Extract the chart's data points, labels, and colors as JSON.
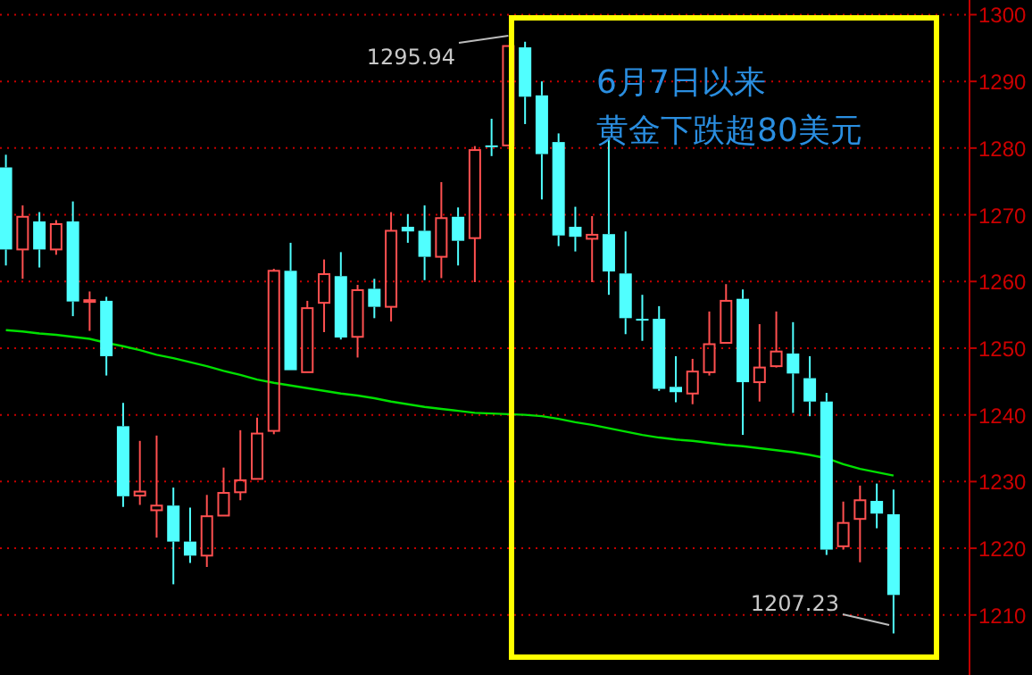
{
  "chart_data": {
    "type": "candlestick",
    "annotations": [
      "6月7日以来",
      "黄金下跌超80美元",
      "1295.94",
      "1207.23"
    ],
    "categories": [
      null,
      null,
      null,
      null,
      null,
      null,
      null,
      null,
      null,
      null,
      null,
      null,
      null,
      null,
      null,
      null,
      null,
      null,
      null,
      null,
      null,
      null,
      null,
      null,
      null,
      null,
      null,
      null,
      null,
      null,
      null,
      null,
      null,
      null,
      null,
      null,
      null,
      null,
      null,
      null,
      null,
      null,
      null,
      null,
      null,
      null,
      null,
      null,
      null,
      null,
      null,
      null,
      null,
      null
    ],
    "ohlc": [
      [
        1277.1,
        1279.0,
        1262.4,
        1264.8
      ],
      [
        1264.8,
        1271.4,
        1260.4,
        1269.7
      ],
      [
        1269.0,
        1270.4,
        1262.1,
        1264.8
      ],
      [
        1264.8,
        1269.2,
        1264.0,
        1268.6
      ],
      [
        1269.0,
        1272.0,
        1254.8,
        1257.0
      ],
      [
        1257.0,
        1258.5,
        1252.6,
        1257.2
      ],
      [
        1257.1,
        1257.7,
        1245.9,
        1248.8
      ],
      [
        1238.3,
        1241.8,
        1226.2,
        1227.8
      ],
      [
        1227.9,
        1236.1,
        1226.5,
        1228.5
      ],
      [
        1225.7,
        1236.9,
        1221.6,
        1226.4
      ],
      [
        1226.4,
        1229.1,
        1214.6,
        1221.0
      ],
      [
        1221.0,
        1226.1,
        1217.8,
        1218.9
      ],
      [
        1218.9,
        1228.0,
        1217.2,
        1224.8
      ],
      [
        1224.9,
        1232.1,
        1224.9,
        1228.3
      ],
      [
        1228.4,
        1237.7,
        1227.2,
        1230.2
      ],
      [
        1230.4,
        1239.6,
        1230.4,
        1237.2
      ],
      [
        1237.6,
        1261.9,
        1237.1,
        1261.6
      ],
      [
        1261.6,
        1265.8,
        1246.7,
        1246.7
      ],
      [
        1246.4,
        1257.1,
        1246.4,
        1256.0
      ],
      [
        1256.8,
        1263.3,
        1252.4,
        1261.1
      ],
      [
        1260.8,
        1264.4,
        1251.3,
        1251.6
      ],
      [
        1251.7,
        1259.5,
        1248.6,
        1258.7
      ],
      [
        1258.9,
        1260.4,
        1254.5,
        1256.2
      ],
      [
        1256.2,
        1270.4,
        1254.0,
        1267.6
      ],
      [
        1268.2,
        1270.1,
        1265.8,
        1267.5
      ],
      [
        1267.6,
        1271.4,
        1260.2,
        1263.7
      ],
      [
        1263.7,
        1274.9,
        1260.5,
        1269.5
      ],
      [
        1269.7,
        1271.1,
        1262.4,
        1266.1
      ],
      [
        1266.5,
        1280.3,
        1259.9,
        1279.7
      ],
      [
        1280.4,
        1284.4,
        1278.8,
        1280.2
      ],
      [
        1280.4,
        1295.3,
        1280.4,
        1295.3
      ],
      [
        1295.1,
        1295.94,
        1283.6,
        1287.7
      ],
      [
        1287.9,
        1290.0,
        1272.3,
        1279.1
      ],
      [
        1280.9,
        1282.2,
        1265.3,
        1266.9
      ],
      [
        1268.2,
        1271.2,
        1264.5,
        1266.7
      ],
      [
        1266.4,
        1269.8,
        1259.9,
        1267.0
      ],
      [
        1267.1,
        1281.5,
        1258.0,
        1261.5
      ],
      [
        1261.2,
        1267.5,
        1252.1,
        1254.5
      ],
      [
        1254.4,
        1258.0,
        1251.1,
        1254.2
      ],
      [
        1254.4,
        1256.3,
        1243.6,
        1243.9
      ],
      [
        1244.2,
        1248.8,
        1241.9,
        1243.4
      ],
      [
        1243.2,
        1248.4,
        1241.6,
        1246.5
      ],
      [
        1246.4,
        1255.5,
        1245.9,
        1250.6
      ],
      [
        1250.8,
        1259.6,
        1250.8,
        1257.1
      ],
      [
        1257.4,
        1258.8,
        1237.0,
        1244.9
      ],
      [
        1244.9,
        1253.6,
        1242.0,
        1247.1
      ],
      [
        1247.3,
        1255.5,
        1247.1,
        1249.5
      ],
      [
        1249.2,
        1253.9,
        1240.3,
        1246.2
      ],
      [
        1245.5,
        1248.8,
        1239.8,
        1242.0
      ],
      [
        1242.0,
        1243.3,
        1219.0,
        1219.8
      ],
      [
        1220.3,
        1227.0,
        1219.8,
        1223.8
      ],
      [
        1224.4,
        1229.4,
        1217.9,
        1227.2
      ],
      [
        1227.1,
        1229.7,
        1223.0,
        1225.2
      ],
      [
        1225.1,
        1228.8,
        1207.23,
        1213.0
      ]
    ],
    "series": [
      {
        "type": "line",
        "color": "#00e000",
        "values": [
          1252.7,
          1252.5,
          1252.2,
          1252.0,
          1251.7,
          1251.4,
          1250.8,
          1250.3,
          1249.7,
          1249.0,
          1248.5,
          1247.9,
          1247.3,
          1246.6,
          1246.0,
          1245.3,
          1244.8,
          1244.4,
          1244.0,
          1243.6,
          1243.2,
          1242.9,
          1242.5,
          1242.0,
          1241.6,
          1241.2,
          1240.9,
          1240.6,
          1240.3,
          1240.2,
          1240.1,
          1240.0,
          1239.8,
          1239.4,
          1238.9,
          1238.5,
          1238.0,
          1237.5,
          1237.0,
          1236.6,
          1236.3,
          1236.1,
          1235.8,
          1235.5,
          1235.3,
          1235.0,
          1234.7,
          1234.4,
          1234.0,
          1233.5,
          1232.6,
          1231.9,
          1231.4,
          1230.9
        ]
      }
    ],
    "ylim": [
      1201,
      1302.2
    ],
    "yticks": [
      1210,
      1220,
      1230,
      1240,
      1250,
      1260,
      1270,
      1280,
      1290,
      1300
    ],
    "grid": "y",
    "tick_labels": "y"
  }
}
